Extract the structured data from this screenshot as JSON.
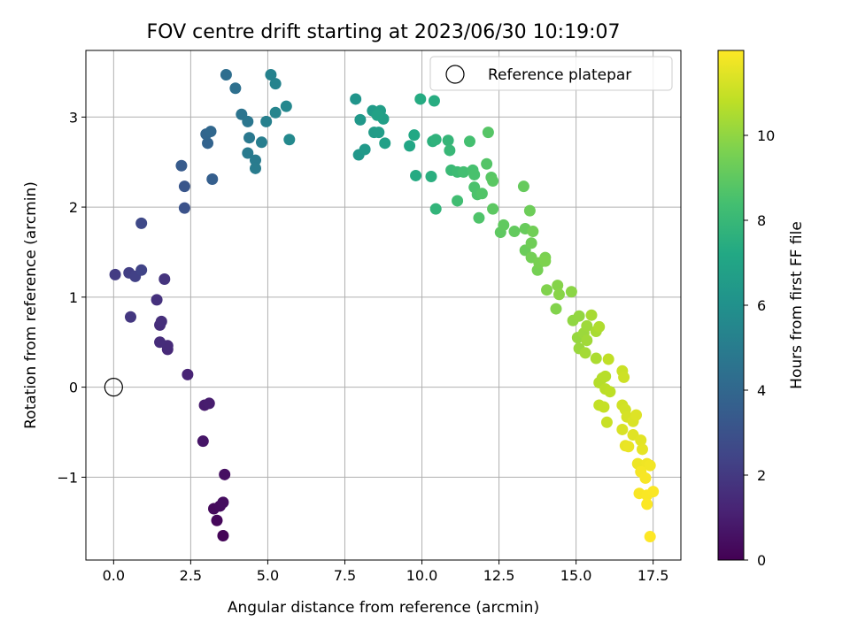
{
  "chart_data": {
    "type": "scatter",
    "title": "FOV centre drift starting at 2023/06/30 10:19:07",
    "xlabel": "Angular distance from reference (arcmin)",
    "ylabel": "Rotation from reference (arcmin)",
    "xlim": [
      -0.9,
      18.4
    ],
    "ylim": [
      -1.92,
      3.74
    ],
    "xticks": [
      0.0,
      2.5,
      5.0,
      7.5,
      10.0,
      12.5,
      15.0,
      17.5
    ],
    "xtick_labels": [
      "0.0",
      "2.5",
      "5.0",
      "7.5",
      "10.0",
      "12.5",
      "15.0",
      "17.5"
    ],
    "yticks": [
      -1,
      0,
      1,
      2,
      3
    ],
    "ytick_labels": [
      "−1",
      "0",
      "1",
      "2",
      "3"
    ],
    "grid": true,
    "legend": {
      "placement": "top-right",
      "entries": [
        "Reference platepar"
      ]
    },
    "reference_point": {
      "label": "Reference platepar",
      "x": 0.0,
      "y": 0.0
    },
    "colorbar": {
      "label": "Hours from first FF file",
      "colormap": "viridis",
      "min": 0,
      "max": 12,
      "ticks": [
        0,
        2,
        4,
        6,
        8,
        10
      ],
      "tick_labels": [
        "0",
        "2",
        "4",
        "6",
        "8",
        "10"
      ]
    },
    "points": [
      {
        "x": 3.55,
        "y": -1.65,
        "c": 0.1
      },
      {
        "x": 3.35,
        "y": -1.48,
        "c": 0.2
      },
      {
        "x": 3.25,
        "y": -1.35,
        "c": 0.3
      },
      {
        "x": 3.45,
        "y": -1.32,
        "c": 0.35
      },
      {
        "x": 3.55,
        "y": -1.28,
        "c": 0.4
      },
      {
        "x": 3.6,
        "y": -0.97,
        "c": 0.5
      },
      {
        "x": 2.9,
        "y": -0.6,
        "c": 0.7
      },
      {
        "x": 2.95,
        "y": -0.2,
        "c": 0.9
      },
      {
        "x": 3.1,
        "y": -0.18,
        "c": 0.95
      },
      {
        "x": 2.4,
        "y": 0.14,
        "c": 1.2
      },
      {
        "x": 1.75,
        "y": 0.42,
        "c": 1.4
      },
      {
        "x": 1.75,
        "y": 0.46,
        "c": 1.45
      },
      {
        "x": 1.5,
        "y": 0.5,
        "c": 1.5
      },
      {
        "x": 1.5,
        "y": 0.69,
        "c": 1.55
      },
      {
        "x": 1.55,
        "y": 0.73,
        "c": 1.6
      },
      {
        "x": 1.4,
        "y": 0.97,
        "c": 1.7
      },
      {
        "x": 1.65,
        "y": 1.2,
        "c": 1.8
      },
      {
        "x": 0.55,
        "y": 0.78,
        "c": 1.9
      },
      {
        "x": 0.05,
        "y": 1.25,
        "c": 2.1
      },
      {
        "x": 0.5,
        "y": 1.27,
        "c": 2.2
      },
      {
        "x": 0.7,
        "y": 1.23,
        "c": 2.3
      },
      {
        "x": 0.9,
        "y": 1.3,
        "c": 2.4
      },
      {
        "x": 0.9,
        "y": 1.82,
        "c": 2.6
      },
      {
        "x": 2.3,
        "y": 1.99,
        "c": 3.0
      },
      {
        "x": 2.3,
        "y": 2.23,
        "c": 3.2
      },
      {
        "x": 2.2,
        "y": 2.46,
        "c": 3.4
      },
      {
        "x": 3.2,
        "y": 2.31,
        "c": 3.6
      },
      {
        "x": 3.05,
        "y": 2.71,
        "c": 3.8
      },
      {
        "x": 3.0,
        "y": 2.81,
        "c": 3.9
      },
      {
        "x": 3.15,
        "y": 2.84,
        "c": 4.0
      },
      {
        "x": 3.65,
        "y": 3.47,
        "c": 4.3
      },
      {
        "x": 3.95,
        "y": 3.32,
        "c": 4.4
      },
      {
        "x": 4.15,
        "y": 3.03,
        "c": 4.6
      },
      {
        "x": 4.35,
        "y": 2.95,
        "c": 4.7
      },
      {
        "x": 4.4,
        "y": 2.77,
        "c": 4.8
      },
      {
        "x": 4.35,
        "y": 2.6,
        "c": 4.9
      },
      {
        "x": 4.6,
        "y": 2.52,
        "c": 4.95
      },
      {
        "x": 4.6,
        "y": 2.43,
        "c": 5.0
      },
      {
        "x": 4.8,
        "y": 2.72,
        "c": 5.1
      },
      {
        "x": 4.95,
        "y": 2.95,
        "c": 5.2
      },
      {
        "x": 5.1,
        "y": 3.47,
        "c": 5.3
      },
      {
        "x": 5.25,
        "y": 3.37,
        "c": 5.35
      },
      {
        "x": 5.25,
        "y": 3.05,
        "c": 5.4
      },
      {
        "x": 5.6,
        "y": 3.12,
        "c": 5.5
      },
      {
        "x": 5.7,
        "y": 2.75,
        "c": 5.6
      },
      {
        "x": 7.85,
        "y": 3.2,
        "c": 6.2
      },
      {
        "x": 7.95,
        "y": 2.58,
        "c": 6.3
      },
      {
        "x": 8.0,
        "y": 2.97,
        "c": 6.35
      },
      {
        "x": 8.15,
        "y": 2.64,
        "c": 6.4
      },
      {
        "x": 8.4,
        "y": 3.07,
        "c": 6.5
      },
      {
        "x": 8.5,
        "y": 3.05,
        "c": 6.55
      },
      {
        "x": 8.45,
        "y": 2.83,
        "c": 6.6
      },
      {
        "x": 8.6,
        "y": 2.83,
        "c": 6.65
      },
      {
        "x": 8.65,
        "y": 3.07,
        "c": 6.7
      },
      {
        "x": 8.75,
        "y": 2.98,
        "c": 6.75
      },
      {
        "x": 8.8,
        "y": 2.71,
        "c": 6.8
      },
      {
        "x": 8.55,
        "y": 3.02,
        "c": 6.85
      },
      {
        "x": 9.6,
        "y": 2.68,
        "c": 7.1
      },
      {
        "x": 9.75,
        "y": 2.8,
        "c": 7.2
      },
      {
        "x": 9.8,
        "y": 2.35,
        "c": 7.3
      },
      {
        "x": 9.95,
        "y": 3.2,
        "c": 7.35
      },
      {
        "x": 10.4,
        "y": 3.18,
        "c": 7.4
      },
      {
        "x": 10.3,
        "y": 2.34,
        "c": 7.5
      },
      {
        "x": 10.35,
        "y": 2.73,
        "c": 7.6
      },
      {
        "x": 10.45,
        "y": 2.75,
        "c": 7.7
      },
      {
        "x": 10.45,
        "y": 1.98,
        "c": 7.8
      },
      {
        "x": 10.85,
        "y": 2.74,
        "c": 7.9
      },
      {
        "x": 10.9,
        "y": 2.63,
        "c": 8.0
      },
      {
        "x": 10.95,
        "y": 2.41,
        "c": 8.1
      },
      {
        "x": 11.15,
        "y": 2.39,
        "c": 8.2
      },
      {
        "x": 11.15,
        "y": 2.07,
        "c": 8.3
      },
      {
        "x": 11.35,
        "y": 2.39,
        "c": 8.35
      },
      {
        "x": 11.55,
        "y": 2.73,
        "c": 8.4
      },
      {
        "x": 11.65,
        "y": 2.41,
        "c": 8.45
      },
      {
        "x": 11.7,
        "y": 2.36,
        "c": 8.5
      },
      {
        "x": 11.7,
        "y": 2.22,
        "c": 8.55
      },
      {
        "x": 11.8,
        "y": 2.14,
        "c": 8.6
      },
      {
        "x": 11.85,
        "y": 1.88,
        "c": 8.65
      },
      {
        "x": 11.95,
        "y": 2.15,
        "c": 8.7
      },
      {
        "x": 12.1,
        "y": 2.48,
        "c": 8.75
      },
      {
        "x": 12.15,
        "y": 2.83,
        "c": 8.8
      },
      {
        "x": 12.25,
        "y": 2.33,
        "c": 8.85
      },
      {
        "x": 12.3,
        "y": 2.29,
        "c": 8.9
      },
      {
        "x": 12.3,
        "y": 1.98,
        "c": 8.95
      },
      {
        "x": 12.55,
        "y": 1.72,
        "c": 9.0
      },
      {
        "x": 12.65,
        "y": 1.8,
        "c": 9.05
      },
      {
        "x": 13.0,
        "y": 1.73,
        "c": 9.1
      },
      {
        "x": 13.3,
        "y": 2.23,
        "c": 9.15
      },
      {
        "x": 13.35,
        "y": 1.76,
        "c": 9.2
      },
      {
        "x": 13.35,
        "y": 1.52,
        "c": 9.25
      },
      {
        "x": 13.5,
        "y": 1.96,
        "c": 9.3
      },
      {
        "x": 13.55,
        "y": 1.6,
        "c": 9.35
      },
      {
        "x": 13.6,
        "y": 1.73,
        "c": 9.4
      },
      {
        "x": 13.55,
        "y": 1.44,
        "c": 9.45
      },
      {
        "x": 13.75,
        "y": 1.3,
        "c": 9.5
      },
      {
        "x": 13.8,
        "y": 1.38,
        "c": 9.55
      },
      {
        "x": 14.0,
        "y": 1.44,
        "c": 9.6
      },
      {
        "x": 14.0,
        "y": 1.4,
        "c": 9.65
      },
      {
        "x": 14.05,
        "y": 1.08,
        "c": 9.7
      },
      {
        "x": 14.35,
        "y": 0.87,
        "c": 9.75
      },
      {
        "x": 14.4,
        "y": 1.13,
        "c": 9.8
      },
      {
        "x": 14.45,
        "y": 1.03,
        "c": 9.85
      },
      {
        "x": 14.85,
        "y": 1.06,
        "c": 9.9
      },
      {
        "x": 14.9,
        "y": 0.74,
        "c": 10.0
      },
      {
        "x": 15.1,
        "y": 0.79,
        "c": 10.05
      },
      {
        "x": 15.05,
        "y": 0.55,
        "c": 10.1
      },
      {
        "x": 15.1,
        "y": 0.43,
        "c": 10.15
      },
      {
        "x": 15.25,
        "y": 0.6,
        "c": 10.2
      },
      {
        "x": 15.35,
        "y": 0.68,
        "c": 10.25
      },
      {
        "x": 15.35,
        "y": 0.52,
        "c": 10.3
      },
      {
        "x": 15.3,
        "y": 0.38,
        "c": 10.35
      },
      {
        "x": 15.5,
        "y": 0.8,
        "c": 10.4
      },
      {
        "x": 15.65,
        "y": 0.62,
        "c": 10.45
      },
      {
        "x": 15.65,
        "y": 0.32,
        "c": 10.5
      },
      {
        "x": 15.75,
        "y": 0.67,
        "c": 10.55
      },
      {
        "x": 15.85,
        "y": 0.1,
        "c": 10.6
      },
      {
        "x": 15.75,
        "y": 0.05,
        "c": 10.65
      },
      {
        "x": 15.95,
        "y": 0.12,
        "c": 10.7
      },
      {
        "x": 15.95,
        "y": -0.02,
        "c": 10.75
      },
      {
        "x": 16.1,
        "y": -0.05,
        "c": 10.8
      },
      {
        "x": 16.05,
        "y": 0.31,
        "c": 10.85
      },
      {
        "x": 15.75,
        "y": -0.2,
        "c": 10.9
      },
      {
        "x": 15.9,
        "y": -0.22,
        "c": 10.95
      },
      {
        "x": 16.0,
        "y": -0.39,
        "c": 11.0
      },
      {
        "x": 16.5,
        "y": 0.18,
        "c": 11.05
      },
      {
        "x": 16.55,
        "y": 0.11,
        "c": 11.1
      },
      {
        "x": 16.5,
        "y": -0.2,
        "c": 11.15
      },
      {
        "x": 16.6,
        "y": -0.25,
        "c": 11.2
      },
      {
        "x": 16.65,
        "y": -0.33,
        "c": 11.25
      },
      {
        "x": 16.5,
        "y": -0.47,
        "c": 11.3
      },
      {
        "x": 16.85,
        "y": -0.38,
        "c": 11.35
      },
      {
        "x": 16.95,
        "y": -0.31,
        "c": 11.4
      },
      {
        "x": 16.85,
        "y": -0.53,
        "c": 11.45
      },
      {
        "x": 17.1,
        "y": -0.59,
        "c": 11.5
      },
      {
        "x": 17.15,
        "y": -0.69,
        "c": 11.55
      },
      {
        "x": 16.6,
        "y": -0.65,
        "c": 11.6
      },
      {
        "x": 16.7,
        "y": -0.66,
        "c": 11.65
      },
      {
        "x": 17.0,
        "y": -0.85,
        "c": 11.7
      },
      {
        "x": 17.3,
        "y": -0.85,
        "c": 11.75
      },
      {
        "x": 17.4,
        "y": -0.87,
        "c": 11.8
      },
      {
        "x": 17.1,
        "y": -0.94,
        "c": 11.85
      },
      {
        "x": 17.25,
        "y": -1.01,
        "c": 11.88
      },
      {
        "x": 17.05,
        "y": -1.18,
        "c": 11.9
      },
      {
        "x": 17.3,
        "y": -1.2,
        "c": 11.93
      },
      {
        "x": 17.5,
        "y": -1.16,
        "c": 11.95
      },
      {
        "x": 17.3,
        "y": -1.3,
        "c": 11.97
      },
      {
        "x": 17.4,
        "y": -1.66,
        "c": 12.0
      }
    ]
  }
}
